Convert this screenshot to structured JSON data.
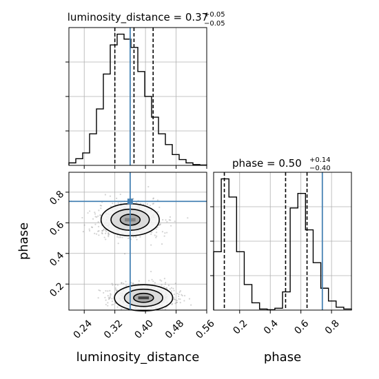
{
  "chart_data": {
    "type": "corner",
    "grid": true,
    "colors": {
      "truth": "#4682b4",
      "hist": "#000000",
      "scatter": "#808080",
      "grid": "#b0b0b0"
    },
    "parameters": [
      {
        "name": "luminosity_distance",
        "title_prefix": "luminosity_distance = ",
        "median_text": "0.37",
        "plus_text": "+0.05",
        "minus_text": "−0.05",
        "range": [
          0.2,
          0.56
        ],
        "ticks": [
          0.24,
          0.32,
          0.4,
          0.48,
          0.56
        ],
        "tick_labels": [
          "0.24",
          "0.32",
          "0.40",
          "0.48",
          "0.56"
        ],
        "quantiles": [
          0.32,
          0.37,
          0.42
        ],
        "truth": 0.36,
        "hist_counts": [
          0.3,
          0.8,
          1.5,
          3.8,
          6.8,
          11,
          14.5,
          15.8,
          15.2,
          14.2,
          11.3,
          8.3,
          5.8,
          3.8,
          2.5,
          1.3,
          0.7,
          0.3,
          0.1,
          0.05
        ]
      },
      {
        "name": "phase",
        "title_prefix": "phase = ",
        "median_text": "0.50",
        "plus_text": "+0.14",
        "minus_text": "−0.40",
        "range": [
          0.03,
          0.93
        ],
        "ticks": [
          0.2,
          0.4,
          0.6,
          0.8
        ],
        "tick_labels": [
          "0.2",
          "0.4",
          "0.6",
          "0.8"
        ],
        "quantiles": [
          0.1,
          0.5,
          0.64
        ],
        "truth": 0.74,
        "hist_counts": [
          1.6,
          3.6,
          3.1,
          1.6,
          0.7,
          0.2,
          0.03,
          0.01,
          0.05,
          0.5,
          2.8,
          3.2,
          2.2,
          1.3,
          0.6,
          0.25,
          0.08,
          0.03
        ]
      }
    ],
    "joint": {
      "x_param": "luminosity_distance",
      "y_param": "phase",
      "modes": [
        {
          "x": 0.36,
          "y": 0.62,
          "sx": 0.04,
          "sy": 0.055,
          "weight": 0.5
        },
        {
          "x": 0.395,
          "y": 0.11,
          "sx": 0.04,
          "sy": 0.045,
          "weight": 0.5
        }
      ],
      "scatter_points": 1600,
      "contour_levels": 3
    },
    "x_axis_labels": [
      "luminosity_distance",
      "phase"
    ],
    "y_axis_labels": [
      "phase"
    ],
    "y_tick_labels_joint": [
      "0.2",
      "0.4",
      "0.6",
      "0.8"
    ]
  }
}
